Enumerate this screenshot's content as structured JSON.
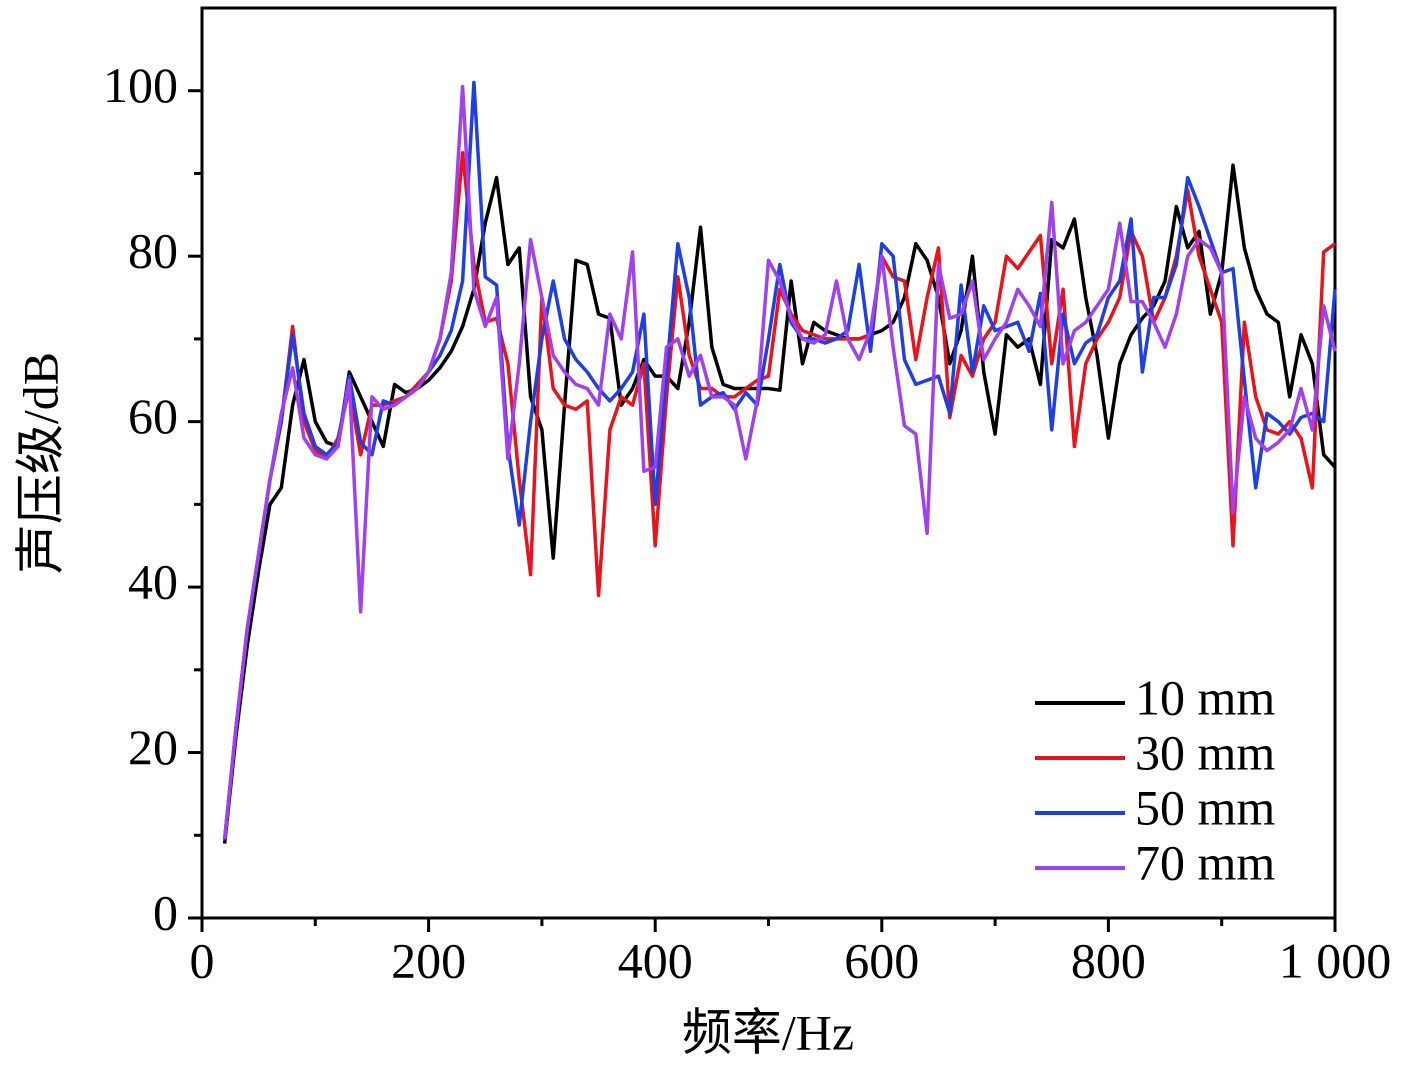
{
  "chart_data": {
    "type": "line",
    "xlabel": "频率/Hz",
    "ylabel": "声压级/dB",
    "xlim": [
      0,
      1000
    ],
    "ylim": [
      0,
      110
    ],
    "xticks": [
      0,
      200,
      400,
      600,
      800,
      {
        "value": 1000,
        "label": "1 000"
      }
    ],
    "xminorticks": [
      100,
      300,
      500,
      700,
      900
    ],
    "yticks": [
      0,
      20,
      40,
      60,
      80,
      100
    ],
    "yminorticks": [
      10,
      30,
      50,
      70,
      90
    ],
    "legend": "lower right",
    "x": [
      20,
      30,
      40,
      50,
      60,
      70,
      80,
      90,
      100,
      110,
      120,
      130,
      140,
      150,
      160,
      170,
      180,
      190,
      200,
      210,
      220,
      230,
      240,
      250,
      260,
      270,
      280,
      290,
      300,
      310,
      320,
      330,
      340,
      350,
      360,
      370,
      380,
      390,
      400,
      410,
      420,
      430,
      440,
      450,
      460,
      470,
      480,
      490,
      500,
      510,
      520,
      530,
      540,
      550,
      560,
      570,
      580,
      590,
      600,
      610,
      620,
      630,
      640,
      650,
      660,
      670,
      680,
      690,
      700,
      710,
      720,
      730,
      740,
      750,
      760,
      770,
      780,
      790,
      800,
      810,
      820,
      830,
      840,
      850,
      860,
      870,
      880,
      890,
      900,
      910,
      920,
      930,
      940,
      950,
      960,
      970,
      980,
      990,
      1000
    ],
    "series": [
      {
        "name": "10 mm",
        "color": "#000000",
        "values": [
          9,
          22,
          33,
          42,
          50,
          52,
          62,
          67.5,
          60,
          57.5,
          57,
          66,
          63,
          60,
          57,
          64.5,
          63.5,
          64,
          65,
          66.5,
          68.5,
          71.5,
          76,
          84,
          89.5,
          79,
          81,
          63,
          59,
          43.5,
          62,
          79.5,
          79,
          73,
          72.5,
          62,
          64,
          67.5,
          65.5,
          65.5,
          64,
          72,
          83.5,
          69,
          64.5,
          64,
          64,
          64,
          64,
          63.8,
          77,
          67,
          72,
          71,
          70.5,
          70,
          70,
          70.5,
          71,
          72,
          75,
          81.5,
          79.5,
          75,
          67,
          71,
          80,
          66,
          58.5,
          70.5,
          69,
          70,
          64.5,
          82,
          81,
          84.5,
          75,
          68,
          58,
          67,
          70.5,
          72.5,
          74,
          77,
          86,
          81,
          83,
          73,
          78,
          91,
          81,
          76,
          73,
          72,
          63,
          70.5,
          67,
          56,
          54.5
        ]
      },
      {
        "name": "30 mm",
        "color": "#e8141c",
        "values": [
          9.5,
          23,
          35,
          44,
          53,
          60,
          71.5,
          60,
          56.5,
          55.5,
          58,
          64,
          56,
          62,
          62,
          62.5,
          63,
          64.5,
          66,
          70,
          77,
          92.5,
          79,
          72,
          72.5,
          67,
          53,
          41.5,
          75,
          64,
          62,
          61.5,
          62.5,
          39,
          59,
          63,
          62,
          67,
          45,
          63,
          77.5,
          68,
          64,
          64,
          63,
          63,
          64,
          65,
          65.5,
          76,
          73,
          71,
          70.5,
          70,
          70,
          70,
          70,
          70.5,
          80,
          77.5,
          77,
          67.5,
          75,
          81,
          60.5,
          68,
          65.5,
          70,
          72,
          80,
          78.5,
          80.5,
          82.5,
          67,
          76,
          57,
          67,
          70,
          72,
          75,
          83,
          80,
          72,
          75,
          80,
          88,
          80,
          76,
          72,
          45,
          72,
          63,
          59,
          58.5,
          60,
          58,
          52,
          80.5,
          81.5
        ]
      },
      {
        "name": "50 mm",
        "color": "#1f3fe0",
        "values": [
          9.5,
          23,
          35,
          44,
          53,
          60,
          70.5,
          61,
          57,
          56,
          57.5,
          65.5,
          57.5,
          56,
          62.5,
          62,
          63,
          64,
          66,
          68,
          71,
          77,
          101,
          77.5,
          76.5,
          57,
          47.5,
          60,
          70,
          77,
          70,
          67.5,
          66,
          64,
          62.5,
          64,
          66,
          73,
          50,
          66,
          81.5,
          75,
          62,
          63,
          63.5,
          61.5,
          63.5,
          62,
          70,
          79,
          72,
          70,
          70,
          69.5,
          70,
          71,
          79,
          68.5,
          81.5,
          80,
          67.5,
          64.5,
          65,
          65.5,
          61,
          76.5,
          66,
          74,
          71,
          71.5,
          72,
          68.5,
          75.5,
          59,
          73,
          67,
          69.5,
          70.5,
          75,
          77,
          84.5,
          66,
          75,
          75,
          79,
          89.5,
          86,
          82,
          78,
          78.5,
          65,
          52,
          61,
          60,
          58.5,
          60.5,
          61,
          60,
          76
        ]
      },
      {
        "name": "70 mm",
        "color": "#a040ee",
        "values": [
          9.5,
          23,
          35,
          44,
          53,
          61,
          66.5,
          58,
          56,
          55.5,
          57,
          65,
          37,
          63,
          61.5,
          62,
          63,
          64,
          66,
          70,
          78,
          100.5,
          76,
          71.5,
          75,
          55.5,
          67,
          82,
          75,
          68,
          66,
          64.5,
          64,
          62,
          73,
          70,
          80.5,
          54,
          54.5,
          69,
          70,
          65.5,
          68,
          63,
          63,
          62,
          55.5,
          62.5,
          79.5,
          77,
          72.5,
          70,
          69.5,
          70.5,
          77,
          70,
          67.5,
          71,
          80,
          69,
          59.5,
          58.5,
          46.5,
          79,
          72.5,
          73,
          77,
          67.5,
          70,
          72,
          76,
          74,
          71.5,
          86.5,
          67,
          71,
          72,
          74,
          76,
          84,
          74.5,
          74.5,
          72,
          69,
          73,
          80,
          82,
          81,
          78,
          49,
          63,
          58,
          56.5,
          57.5,
          59,
          64,
          59,
          74,
          68.5
        ]
      }
    ]
  }
}
